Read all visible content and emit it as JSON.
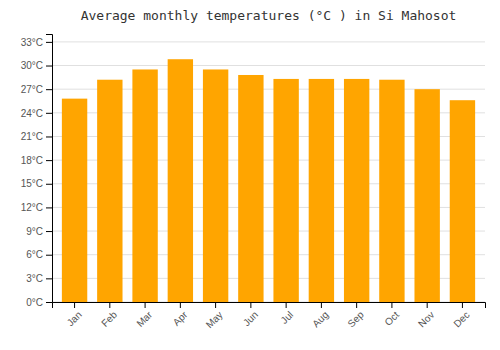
{
  "chart_data": {
    "type": "bar",
    "title": "Average monthly temperatures (°C ) in Si Mahosot",
    "categories": [
      "Jan",
      "Feb",
      "Mar",
      "Apr",
      "May",
      "Jun",
      "Jul",
      "Aug",
      "Sep",
      "Oct",
      "Nov",
      "Dec"
    ],
    "values": [
      25.8,
      28.2,
      29.5,
      30.8,
      29.5,
      28.8,
      28.3,
      28.3,
      28.3,
      28.2,
      27.0,
      25.6
    ],
    "color": "#FFA500",
    "ylim": [
      0,
      34
    ],
    "yticks": [
      {
        "value": 0,
        "label": "0°C"
      },
      {
        "value": 3,
        "label": "3°C"
      },
      {
        "value": 6,
        "label": "6°C"
      },
      {
        "value": 9,
        "label": "9°C"
      },
      {
        "value": 12,
        "label": "12°C"
      },
      {
        "value": 15,
        "label": "15°C"
      },
      {
        "value": 18,
        "label": "18°C"
      },
      {
        "value": 21,
        "label": "21°C"
      },
      {
        "value": 24,
        "label": "24°C"
      },
      {
        "value": 27,
        "label": "27°C"
      },
      {
        "value": 30,
        "label": "30°C"
      },
      {
        "value": 33,
        "label": "33°C"
      }
    ],
    "grid": true
  }
}
